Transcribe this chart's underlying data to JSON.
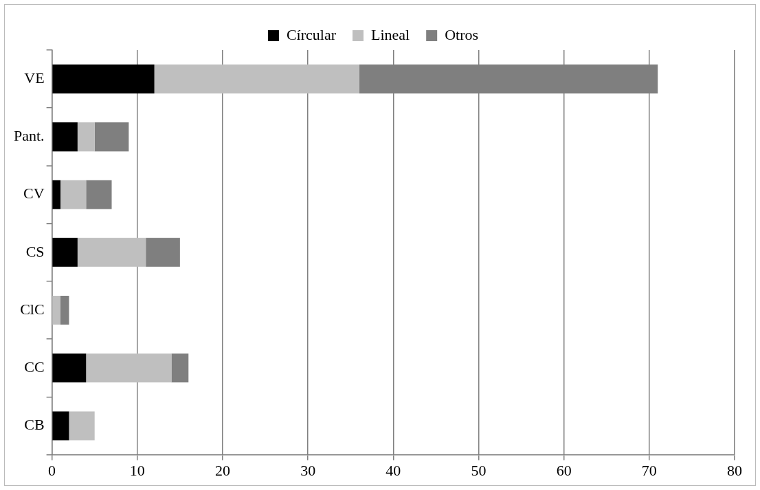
{
  "chart_data": {
    "type": "bar",
    "orientation": "horizontal",
    "stacked": true,
    "categories": [
      "VE",
      "Pant.",
      "CV",
      "CS",
      "ClC",
      "CC",
      "CB"
    ],
    "series": [
      {
        "name": "Círcular",
        "color": "#000000",
        "values": [
          12,
          3,
          1,
          3,
          0,
          4,
          2
        ]
      },
      {
        "name": "Lineal",
        "color": "#bfbfbf",
        "values": [
          24,
          2,
          3,
          8,
          1,
          10,
          3
        ]
      },
      {
        "name": "Otros",
        "color": "#7f7f7f",
        "values": [
          35,
          4,
          3,
          4,
          1,
          2,
          0
        ]
      }
    ],
    "xlim": [
      0,
      80
    ],
    "xticks": [
      0,
      10,
      20,
      30,
      40,
      50,
      60,
      70,
      80
    ],
    "grid": "x",
    "legend": "top"
  }
}
